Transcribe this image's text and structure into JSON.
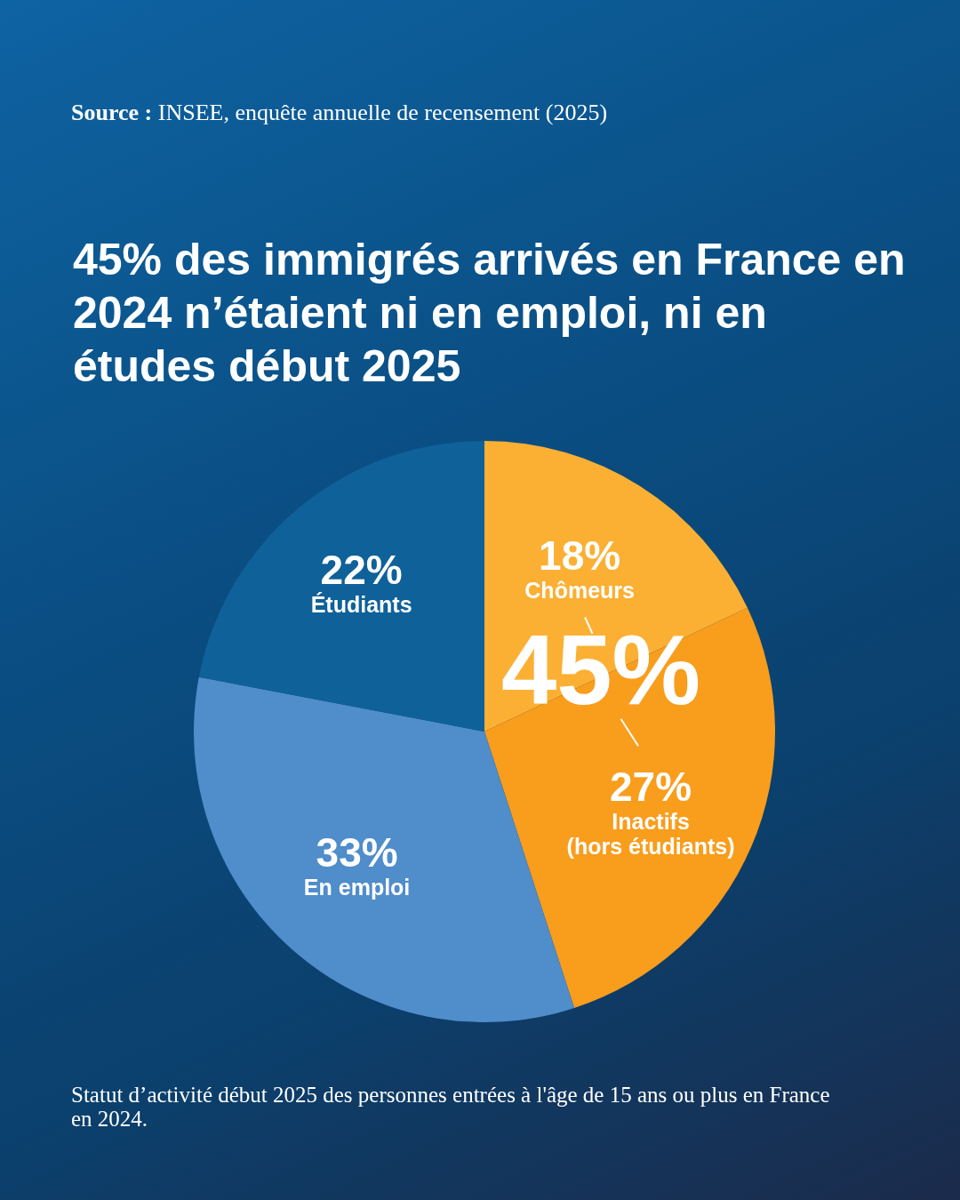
{
  "chart_data": {
    "type": "pie",
    "title": "45% des immigrés arrivés en France en 2024 n’étaient ni en emploi, ni en études début 2025",
    "categories": [
      "Chômeurs",
      "Inactifs (hors étudiants)",
      "En emploi",
      "Étudiants"
    ],
    "values": [
      18,
      27,
      33,
      22
    ],
    "value_labels": [
      "18%",
      "27%",
      "33%",
      "22%"
    ],
    "colors": [
      "#fbb034",
      "#f99d1c",
      "#4f8dcb",
      "#0f6199"
    ],
    "annotations": [
      "Source : INSEE, enquête annuelle de recensement (2025)",
      "45%",
      "Statut d’activité début 2025 des personnes entrées à l'âge de 15 ans ou plus en France en 2024."
    ]
  }
}
